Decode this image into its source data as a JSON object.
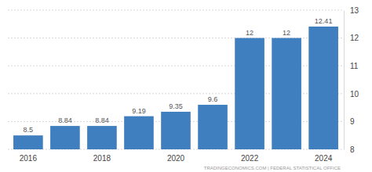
{
  "chart_data": {
    "type": "bar",
    "categories": [
      "2016",
      null,
      "2018",
      null,
      "2020",
      null,
      "2022",
      null,
      "2024"
    ],
    "values": [
      8.5,
      8.84,
      8.84,
      9.19,
      9.35,
      9.6,
      12,
      12,
      12.41
    ],
    "color": "#3f7fbf",
    "ylim": [
      8,
      13
    ],
    "yticks": [
      8,
      9,
      10,
      11,
      12,
      13
    ],
    "grid": true,
    "data_labels": true,
    "annotations": [
      "TRADINGECONOMICS.COM | FEDERAL STATISTICAL OFFICE"
    ]
  }
}
